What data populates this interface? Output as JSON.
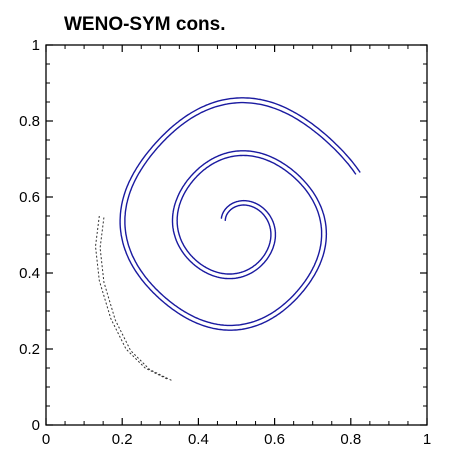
{
  "chart_data": {
    "type": "line",
    "title": "WENO-SYM cons.",
    "xlabel": "",
    "ylabel": "",
    "xlim": [
      0,
      1
    ],
    "ylim": [
      0,
      1
    ],
    "x_ticks": [
      "0",
      "0.2",
      "0.4",
      "0.6",
      "0.8",
      "1"
    ],
    "y_ticks": [
      "0",
      "0.2",
      "0.4",
      "0.6",
      "0.8",
      "1"
    ],
    "grid": false,
    "legend": "none",
    "spiral": {
      "center": [
        0.5,
        0.52
      ],
      "start_radius": 0.04,
      "end_radius": 0.34,
      "start_angle_deg": 150,
      "turns": 2.35,
      "direction": "clockwise",
      "band_half_width": 0.006
    },
    "series": [
      {
        "style": "solid",
        "color": "#1a1aa0",
        "points": [
          [
            0.4,
            0.52
          ],
          [
            0.39,
            0.48
          ],
          [
            0.4,
            0.44
          ],
          [
            0.44,
            0.42
          ],
          [
            0.5,
            0.42
          ],
          [
            0.56,
            0.45
          ],
          [
            0.6,
            0.52
          ],
          [
            0.58,
            0.6
          ],
          [
            0.5,
            0.65
          ],
          [
            0.42,
            0.63
          ],
          [
            0.36,
            0.56
          ],
          [
            0.35,
            0.46
          ],
          [
            0.4,
            0.36
          ],
          [
            0.5,
            0.33
          ],
          [
            0.6,
            0.36
          ],
          [
            0.67,
            0.45
          ],
          [
            0.69,
            0.56
          ],
          [
            0.65,
            0.68
          ],
          [
            0.55,
            0.74
          ],
          [
            0.44,
            0.73
          ],
          [
            0.33,
            0.64
          ],
          [
            0.28,
            0.52
          ],
          [
            0.29,
            0.38
          ],
          [
            0.37,
            0.27
          ],
          [
            0.5,
            0.23
          ],
          [
            0.64,
            0.26
          ],
          [
            0.75,
            0.36
          ],
          [
            0.79,
            0.5
          ],
          [
            0.77,
            0.66
          ],
          [
            0.67,
            0.79
          ],
          [
            0.53,
            0.84
          ],
          [
            0.38,
            0.82
          ],
          [
            0.25,
            0.73
          ],
          [
            0.18,
            0.6
          ],
          [
            0.14,
            0.55
          ]
        ]
      },
      {
        "style": "dashed",
        "color": "#333333",
        "points": [
          [
            0.14,
            0.55
          ],
          [
            0.13,
            0.47
          ],
          [
            0.14,
            0.38
          ],
          [
            0.17,
            0.28
          ],
          [
            0.21,
            0.2
          ],
          [
            0.26,
            0.15
          ],
          [
            0.32,
            0.12
          ]
        ]
      }
    ]
  }
}
